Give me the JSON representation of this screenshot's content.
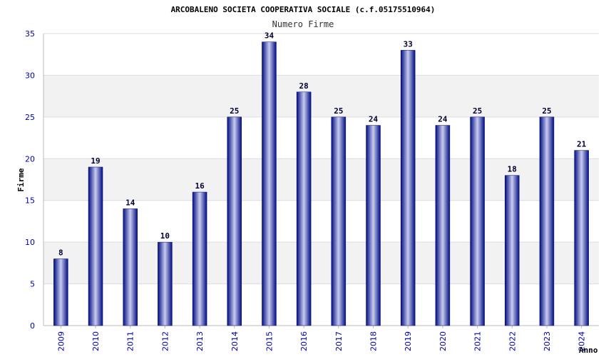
{
  "chart_data": {
    "type": "bar",
    "title": "ARCOBALENO SOCIETA COOPERATIVA SOCIALE (c.f.05175510964)",
    "subtitle": "Numero Firme",
    "xlabel": "Anno",
    "ylabel": "Firme",
    "categories": [
      "2009",
      "2010",
      "2011",
      "2012",
      "2013",
      "2014",
      "2015",
      "2016",
      "2017",
      "2018",
      "2019",
      "2020",
      "2021",
      "2022",
      "2023",
      "2024"
    ],
    "values": [
      8,
      19,
      14,
      10,
      16,
      25,
      34,
      28,
      25,
      24,
      33,
      24,
      25,
      18,
      25,
      21
    ],
    "ylim": [
      0,
      35
    ],
    "yticks": [
      0,
      5,
      10,
      15,
      20,
      25,
      30,
      35
    ],
    "grid": true,
    "legend": "none",
    "data_labels": true
  },
  "colors": {
    "bar_dark": "#000c80",
    "bar_light": "#c8ccf0",
    "band": "#f2f2f2",
    "grid": "#dddddd",
    "tick_text": "#0000aa"
  }
}
